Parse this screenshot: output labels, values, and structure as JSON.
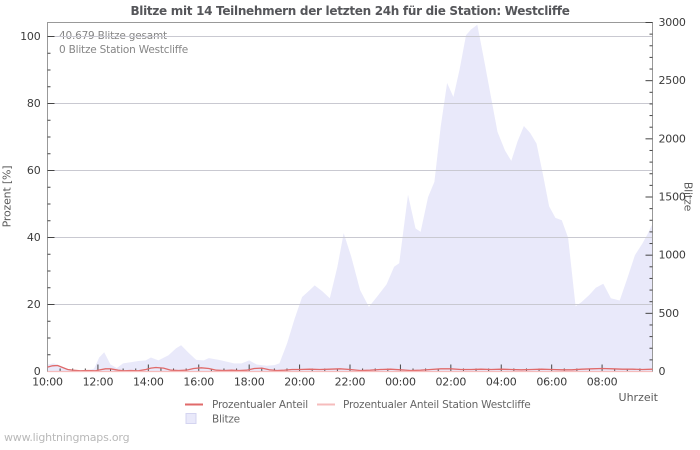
{
  "page": {
    "watermark": "www.lightningmaps.org"
  },
  "chart_data": {
    "type": "area",
    "title": "Blitze mit 14 Teilnehmern der letzten 24h für die Station: Westcliffe",
    "xlabel": "Uhrzeit",
    "ylabel_left": "Prozent  [%]",
    "ylabel_right": "Blitze",
    "annotations": [
      "40.679 Blitze gesamt",
      "0 Blitze Station Westcliffe"
    ],
    "grid": "horizontal",
    "legend_position": "bottom",
    "x_range_hours": [
      0,
      24
    ],
    "x_major_step_hours": 2,
    "x_minor_step_hours": 0.5,
    "x_tick_labels": [
      "10:00",
      "12:00",
      "14:00",
      "16:00",
      "18:00",
      "20:00",
      "22:00",
      "00:00",
      "02:00",
      "04:00",
      "06:00",
      "08:00"
    ],
    "axis_left": {
      "min": 0,
      "max": 100,
      "major": 20,
      "minor": 5,
      "tick_labels": [
        "0",
        "20",
        "40",
        "60",
        "80",
        "100"
      ]
    },
    "axis_right": {
      "min": 0,
      "max": 3000,
      "major": 500,
      "minor": 100,
      "tick_labels": [
        "0",
        "500",
        "1000",
        "1500",
        "2000",
        "2500",
        "3000"
      ]
    },
    "legend": [
      {
        "label": "Prozentualer Anteil",
        "swatch": "line",
        "color": "#e06a6a"
      },
      {
        "label": "Prozentualer Anteil Station Westcliffe",
        "swatch": "line",
        "color": "#f6bcbc"
      },
      {
        "label": "Blitze",
        "swatch": "area",
        "color": "#e9e9fa"
      }
    ],
    "series": [
      {
        "name": "Blitze",
        "type": "area",
        "axis": "right",
        "color": "#e9e9fa",
        "x": [
          0,
          0.25,
          0.5,
          0.75,
          1,
          1.25,
          1.6,
          1.85,
          2.05,
          2.25,
          2.5,
          2.75,
          3,
          3.3,
          3.6,
          3.9,
          4.1,
          4.4,
          4.8,
          5.1,
          5.3,
          5.6,
          5.9,
          6.2,
          6.4,
          6.8,
          7.1,
          7.4,
          7.7,
          8,
          8.3,
          8.7,
          9,
          9.2,
          9.5,
          9.8,
          10.1,
          10.4,
          10.6,
          10.9,
          11.2,
          11.5,
          11.75,
          12.05,
          12.4,
          12.75,
          13.1,
          13.45,
          13.75,
          13.95,
          14.3,
          14.6,
          14.8,
          15.1,
          15.35,
          15.6,
          15.85,
          16.1,
          16.35,
          16.6,
          16.8,
          17.05,
          17.3,
          17.6,
          17.85,
          18.15,
          18.4,
          18.65,
          18.9,
          19.15,
          19.4,
          19.65,
          19.9,
          20.15,
          20.4,
          20.65,
          20.95,
          21.2,
          21.5,
          21.75,
          22.05,
          22.35,
          22.7,
          23,
          23.3,
          23.6,
          23.8,
          24
        ],
        "values": [
          60,
          70,
          50,
          25,
          15,
          10,
          10,
          25,
          120,
          165,
          60,
          30,
          70,
          80,
          90,
          95,
          120,
          95,
          140,
          200,
          225,
          160,
          100,
          95,
          115,
          100,
          85,
          70,
          70,
          95,
          60,
          50,
          55,
          70,
          240,
          450,
          640,
          700,
          740,
          690,
          630,
          900,
          1190,
          985,
          700,
          555,
          650,
          750,
          900,
          930,
          1520,
          1230,
          1200,
          1500,
          1630,
          2110,
          2480,
          2360,
          2600,
          2890,
          2940,
          2980,
          2700,
          2350,
          2060,
          1900,
          1810,
          1980,
          2110,
          2050,
          1960,
          1700,
          1420,
          1320,
          1300,
          1150,
          560,
          600,
          660,
          720,
          755,
          630,
          610,
          800,
          1000,
          1100,
          1180,
          1270
        ]
      },
      {
        "name": "Prozentualer Anteil",
        "type": "line",
        "axis": "left",
        "color": "#e06a6a",
        "x": [
          0,
          0.2,
          0.4,
          0.6,
          0.8,
          1,
          1.3,
          1.6,
          1.9,
          2.1,
          2.3,
          2.5,
          2.8,
          3,
          3.3,
          3.6,
          3.9,
          4.1,
          4.3,
          4.6,
          4.9,
          5.2,
          5.5,
          5.8,
          6.1,
          6.4,
          6.7,
          7,
          7.3,
          7.6,
          7.9,
          8.2,
          8.5,
          8.8,
          9.1,
          9.4,
          9.7,
          10,
          10.4,
          10.8,
          11.2,
          11.6,
          12,
          12.4,
          12.8,
          13.2,
          13.6,
          14,
          14.4,
          14.8,
          15.2,
          15.6,
          16,
          16.4,
          16.8,
          17.2,
          17.6,
          18,
          18.4,
          18.8,
          19.2,
          19.6,
          20,
          20.4,
          20.8,
          21.2,
          21.6,
          22,
          22.4,
          22.8,
          23.2,
          23.6,
          24
        ],
        "values": [
          1.3,
          1.7,
          1.8,
          1.2,
          0.6,
          0.4,
          0.2,
          0.3,
          0.2,
          0.5,
          0.8,
          0.8,
          0.4,
          0.2,
          0.3,
          0.2,
          0.6,
          1,
          1.2,
          1,
          0.4,
          0.3,
          0.4,
          0.9,
          1.1,
          0.9,
          0.4,
          0.3,
          0.4,
          0.3,
          0.4,
          0.9,
          1,
          0.5,
          0.3,
          0.4,
          0.6,
          0.6,
          0.7,
          0.6,
          0.7,
          0.8,
          0.6,
          0.3,
          0.4,
          0.6,
          0.7,
          0.5,
          0.3,
          0.4,
          0.6,
          0.8,
          0.8,
          0.6,
          0.6,
          0.7,
          0.6,
          0.7,
          0.6,
          0.5,
          0.6,
          0.7,
          0.6,
          0.5,
          0.5,
          0.7,
          0.8,
          0.9,
          0.8,
          0.7,
          0.7,
          0.6,
          0.7
        ]
      },
      {
        "name": "Prozentualer Anteil Station Westcliffe",
        "type": "line",
        "axis": "left",
        "color": "#f6bcbc",
        "x": [
          0,
          24
        ],
        "values": [
          0,
          0
        ]
      }
    ],
    "colors": {
      "grid": "#c9c9d1",
      "border": "#999999",
      "tick": "#444444",
      "tick_text": "#3c3c3c",
      "legend_text": "#666666"
    }
  }
}
